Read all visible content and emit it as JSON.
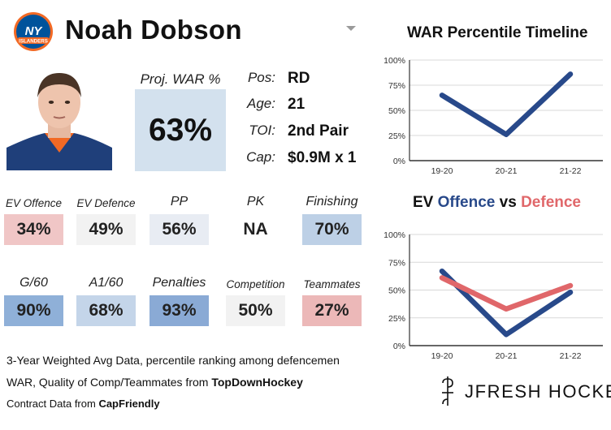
{
  "header": {
    "player_name": "Noah Dobson",
    "team_logo_text": "NY",
    "team_logo_subtext": "ISLANDERS"
  },
  "projection": {
    "label": "Proj. WAR %",
    "value": "63%"
  },
  "info": [
    {
      "label": "Pos:",
      "value": "RD"
    },
    {
      "label": "Age:",
      "value": "21"
    },
    {
      "label": "TOI:",
      "value": "2nd Pair"
    },
    {
      "label": "Cap:",
      "value": "$0.9M x 1"
    }
  ],
  "stats_row1": [
    {
      "label": "EV Offence",
      "value": "34%",
      "color": "#f0c6c6"
    },
    {
      "label": "EV Defence",
      "value": "49%",
      "color": "#f2f2f2"
    },
    {
      "label": "PP",
      "value": "56%",
      "color": "#e8ecf3"
    },
    {
      "label": "PK",
      "value": "NA",
      "color": "#ffffff"
    },
    {
      "label": "Finishing",
      "value": "70%",
      "color": "#bdd0e6"
    }
  ],
  "stats_row2": [
    {
      "label": "G/60",
      "value": "90%",
      "color": "#8fb0d8"
    },
    {
      "label": "A1/60",
      "value": "68%",
      "color": "#c4d5e9"
    },
    {
      "label": "Penalties",
      "value": "93%",
      "color": "#8aaad5"
    },
    {
      "label": "Competition",
      "value": "50%",
      "color": "#f2f2f2"
    },
    {
      "label": "Teammates",
      "value": "27%",
      "color": "#ecb8b8"
    }
  ],
  "footer": {
    "line1": "3-Year Weighted Avg Data, percentile ranking among defencemen",
    "line2_prefix": "WAR, Quality of Comp/Teammates from ",
    "line2_source": "TopDownHockey",
    "line3_prefix": "Contract Data from ",
    "line3_source": "CapFriendly"
  },
  "brand": {
    "name": "JFRESH HOCKEY"
  },
  "colors": {
    "offence": "#28498a",
    "defence": "#e0676a",
    "grid": "#d8d8d8",
    "axis": "#333333"
  },
  "chart_data": [
    {
      "type": "line",
      "title": "WAR Percentile Timeline",
      "categories": [
        "19-20",
        "20-21",
        "21-22"
      ],
      "series": [
        {
          "name": "WAR",
          "values": [
            65,
            26,
            86
          ]
        }
      ],
      "ylim": [
        0,
        100
      ],
      "yticks": [
        0,
        25,
        50,
        75,
        100
      ],
      "ytick_labels": [
        "0%",
        "25%",
        "50%",
        "75%",
        "100%"
      ]
    },
    {
      "type": "line",
      "title_parts": [
        "EV ",
        "Offence",
        " vs ",
        "Defence"
      ],
      "categories": [
        "19-20",
        "20-21",
        "21-22"
      ],
      "series": [
        {
          "name": "Offence",
          "values": [
            67,
            10,
            48
          ]
        },
        {
          "name": "Defence",
          "values": [
            61,
            33,
            54
          ]
        }
      ],
      "ylim": [
        0,
        100
      ],
      "yticks": [
        0,
        25,
        50,
        75,
        100
      ],
      "ytick_labels": [
        "0%",
        "25%",
        "50%",
        "75%",
        "100%"
      ]
    }
  ]
}
